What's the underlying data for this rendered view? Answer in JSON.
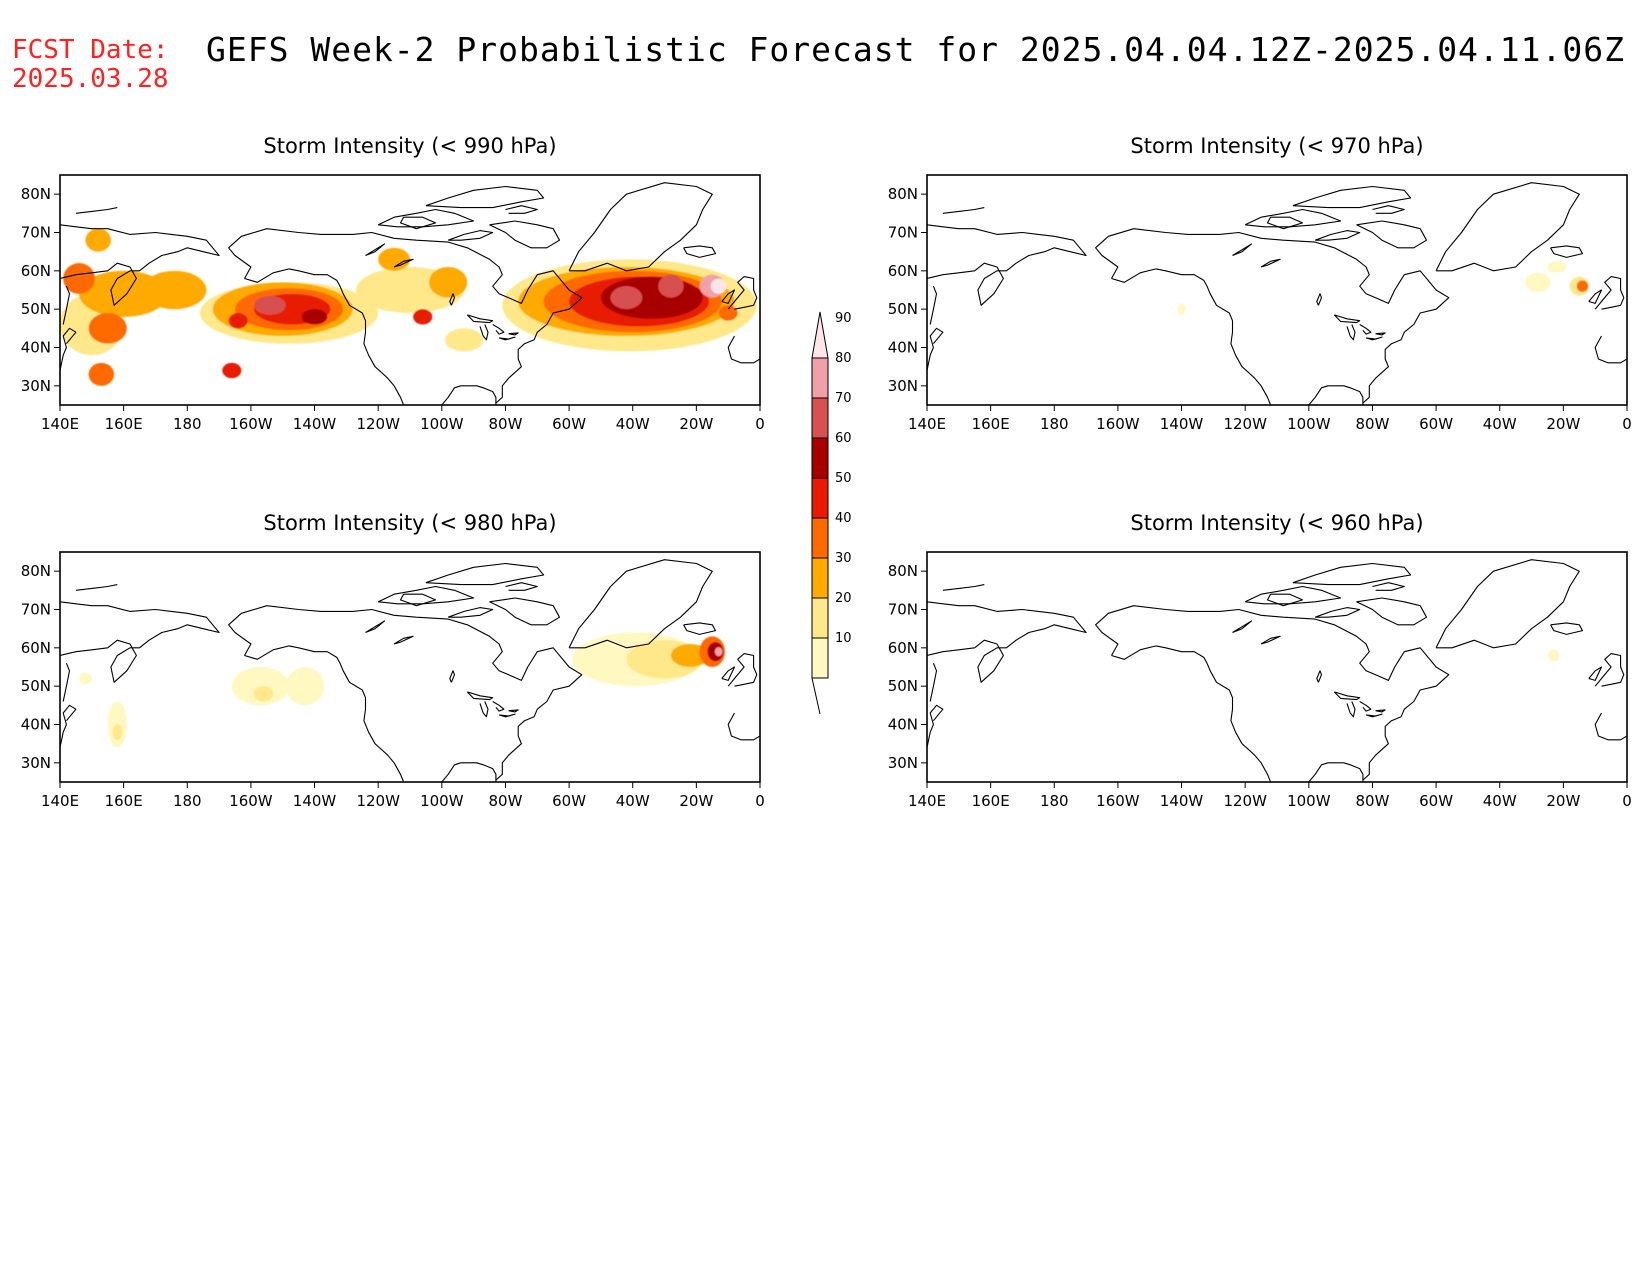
{
  "header": {
    "fcst_label": "FCST Date:",
    "fcst_date": "2025.03.28",
    "title": "GEFS Week-2 Probabilistic Forecast for 2025.04.04.12Z-2025.04.11.06Z"
  },
  "colors": {
    "fcst_text": "#ff2020",
    "levels": [
      "#fff8c0",
      "#ffe88a",
      "#ffaa00",
      "#ff6a00",
      "#e81a00",
      "#a80000",
      "#d85050",
      "#f0a0a8",
      "#ffe4e8"
    ]
  },
  "colorbar": {
    "labels": [
      "10",
      "20",
      "30",
      "40",
      "50",
      "60",
      "70",
      "80",
      "90"
    ]
  },
  "axes": {
    "x_ticks": [
      "140E",
      "160E",
      "180",
      "160W",
      "140W",
      "120W",
      "100W",
      "80W",
      "60W",
      "40W",
      "20W",
      "0"
    ],
    "y_ticks": [
      "80N",
      "70N",
      "60N",
      "50N",
      "40N",
      "30N"
    ]
  },
  "panels": [
    {
      "title": "Storm Intensity (< 990 hPa)",
      "blobs": [
        {
          "lon": 150,
          "lat": 46,
          "rx": 10,
          "ry": 8,
          "level": 1
        },
        {
          "lon": 160,
          "lat": 54,
          "rx": 14,
          "ry": 6,
          "level": 2
        },
        {
          "lon": 176,
          "lat": 55,
          "rx": 10,
          "ry": 5,
          "level": 2
        },
        {
          "lon": 155,
          "lat": 45,
          "rx": 6,
          "ry": 4,
          "level": 3
        },
        {
          "lon": 146,
          "lat": 58,
          "rx": 5,
          "ry": 4,
          "level": 3
        },
        {
          "lon": 153,
          "lat": 33,
          "rx": 4,
          "ry": 3,
          "level": 3
        },
        {
          "lon": 152,
          "lat": 68,
          "rx": 4,
          "ry": 3,
          "level": 2
        },
        {
          "lon": 212,
          "lat": 49,
          "rx": 28,
          "ry": 8,
          "level": 1
        },
        {
          "lon": 210,
          "lat": 50,
          "rx": 22,
          "ry": 7,
          "level": 2
        },
        {
          "lon": 212,
          "lat": 50,
          "rx": 17,
          "ry": 5.5,
          "level": 3
        },
        {
          "lon": 213,
          "lat": 50,
          "rx": 12,
          "ry": 4,
          "level": 4
        },
        {
          "lon": 206,
          "lat": 51,
          "rx": 5,
          "ry": 2.5,
          "level": 6
        },
        {
          "lon": 220,
          "lat": 48,
          "rx": 4,
          "ry": 2,
          "level": 5
        },
        {
          "lon": 196,
          "lat": 47,
          "rx": 3,
          "ry": 2,
          "level": 4
        },
        {
          "lon": 194,
          "lat": 34,
          "rx": 3,
          "ry": 2,
          "level": 4
        },
        {
          "lon": 250,
          "lat": 55,
          "rx": 17,
          "ry": 6,
          "level": 1
        },
        {
          "lon": 262,
          "lat": 57,
          "rx": 6,
          "ry": 4,
          "level": 2
        },
        {
          "lon": 245,
          "lat": 63,
          "rx": 5,
          "ry": 3,
          "level": 2
        },
        {
          "lon": 254,
          "lat": 48,
          "rx": 3,
          "ry": 2,
          "level": 4
        },
        {
          "lon": 267,
          "lat": 42,
          "rx": 6,
          "ry": 3,
          "level": 1
        },
        {
          "lon": 319,
          "lat": 51,
          "rx": 40,
          "ry": 12,
          "level": 1
        },
        {
          "lon": 318,
          "lat": 52,
          "rx": 34,
          "ry": 9,
          "level": 2
        },
        {
          "lon": 320,
          "lat": 52,
          "rx": 28,
          "ry": 8,
          "level": 3
        },
        {
          "lon": 322,
          "lat": 52,
          "rx": 22,
          "ry": 6.5,
          "level": 4
        },
        {
          "lon": 326,
          "lat": 53,
          "rx": 16,
          "ry": 5.5,
          "level": 5
        },
        {
          "lon": 318,
          "lat": 53,
          "rx": 5,
          "ry": 3,
          "level": 6
        },
        {
          "lon": 332,
          "lat": 56,
          "rx": 4,
          "ry": 3,
          "level": 6
        },
        {
          "lon": 345,
          "lat": 56,
          "rx": 4,
          "ry": 3,
          "level": 7
        },
        {
          "lon": 347,
          "lat": 56,
          "rx": 2.5,
          "ry": 2,
          "level": 8
        },
        {
          "lon": 350,
          "lat": 49,
          "rx": 3,
          "ry": 2,
          "level": 3
        }
      ]
    },
    {
      "title": "Storm Intensity (< 970 hPa)",
      "blobs": [
        {
          "lon": 332,
          "lat": 57,
          "rx": 4,
          "ry": 2.5,
          "level": 0
        },
        {
          "lon": 338,
          "lat": 61,
          "rx": 3,
          "ry": 1.5,
          "level": 0
        },
        {
          "lon": 345,
          "lat": 56,
          "rx": 3,
          "ry": 2.5,
          "level": 1
        },
        {
          "lon": 346,
          "lat": 56,
          "rx": 1.8,
          "ry": 1.5,
          "level": 3
        },
        {
          "lon": 220,
          "lat": 50,
          "rx": 1.2,
          "ry": 1.5,
          "level": 0
        }
      ]
    },
    {
      "title": "Storm Intensity (< 980 hPa)",
      "blobs": [
        {
          "lon": 158,
          "lat": 40,
          "rx": 3,
          "ry": 6,
          "level": 0
        },
        {
          "lon": 158,
          "lat": 38,
          "rx": 1.5,
          "ry": 2,
          "level": 1
        },
        {
          "lon": 148,
          "lat": 52,
          "rx": 2,
          "ry": 1.5,
          "level": 0
        },
        {
          "lon": 203,
          "lat": 50,
          "rx": 9,
          "ry": 5,
          "level": 0
        },
        {
          "lon": 217,
          "lat": 50,
          "rx": 6,
          "ry": 5,
          "level": 0
        },
        {
          "lon": 204,
          "lat": 48,
          "rx": 3,
          "ry": 2,
          "level": 1
        },
        {
          "lon": 321,
          "lat": 57,
          "rx": 20,
          "ry": 7,
          "level": 0
        },
        {
          "lon": 330,
          "lat": 57,
          "rx": 12,
          "ry": 5,
          "level": 1
        },
        {
          "lon": 338,
          "lat": 58,
          "rx": 6,
          "ry": 3,
          "level": 2
        },
        {
          "lon": 345,
          "lat": 59,
          "rx": 4,
          "ry": 4,
          "level": 3
        },
        {
          "lon": 346,
          "lat": 59,
          "rx": 2.5,
          "ry": 2.5,
          "level": 5
        },
        {
          "lon": 347,
          "lat": 59,
          "rx": 1.2,
          "ry": 1.2,
          "level": 7
        }
      ]
    },
    {
      "title": "Storm Intensity (< 960 hPa)",
      "blobs": [
        {
          "lon": 337,
          "lat": 58,
          "rx": 1.8,
          "ry": 1.5,
          "level": 0
        }
      ]
    }
  ]
}
